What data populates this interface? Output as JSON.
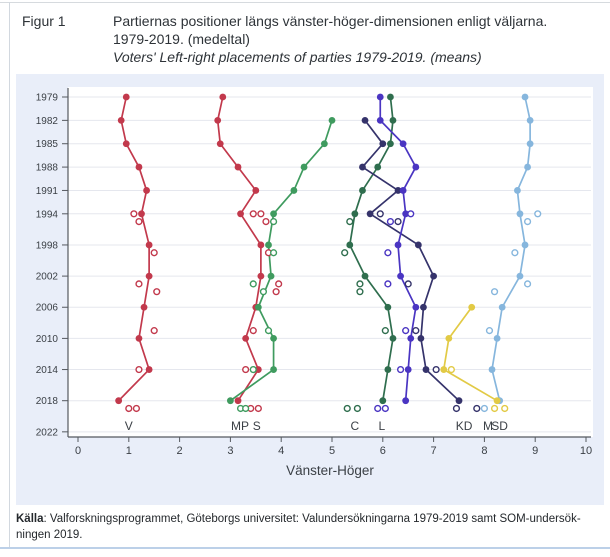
{
  "header": {
    "fig_label": "Figur 1",
    "title_line1": "Partiernas positioner längs vänster-höger-dimensionen enligt väljarna.",
    "title_line2": "1979-2019. (medeltal)",
    "title_line3": "Voters' Left-right placements of parties 1979-2019. (means)"
  },
  "source": {
    "label_bold": "Källa",
    "line1_rest": ": Valforskningsprogrammet, Göteborgs universitet: Valundersökningarna 1979-2019 samt SOM-undersök-",
    "line2": "ningen 2019."
  },
  "colors": {
    "panel_bg": "#e9eef9",
    "plot_bg": "#ffffff",
    "grid": "#e5e7ee",
    "axis": "#55595f",
    "text": "#3a3f45",
    "red": "#c2394c",
    "mp_green": "#3f9b5f",
    "c_green": "#2f6e4e",
    "l_indigo": "#4a35c2",
    "kd_navy": "#35336b",
    "m_lightblue": "#86b6dd",
    "sd_yellow": "#e2ca45"
  },
  "chart_data": {
    "type": "line",
    "title": "Partiernas positioner längs vänster-höger-dimensionen enligt väljarna 1979-2019 (medeltal)",
    "xlabel": "Vänster-Höger",
    "xlim": [
      0,
      10
    ],
    "x_ticks": [
      0,
      1,
      2,
      3,
      4,
      5,
      6,
      7,
      8,
      9,
      10
    ],
    "y_tick_years": [
      1979,
      1982,
      1985,
      1988,
      1991,
      1994,
      1998,
      2002,
      2006,
      2010,
      2014,
      2018,
      2022
    ],
    "grid": true,
    "legend_position": "inline-bottom-labels",
    "marker_note": "filled dot = Valundersökning (election study), open circle = SOM-undersökning",
    "series": [
      {
        "party": "S",
        "color_key": "red",
        "points": [
          [
            1979,
            2.85
          ],
          [
            1982,
            2.75
          ],
          [
            1985,
            2.8
          ],
          [
            1988,
            3.15
          ],
          [
            1991,
            3.5
          ],
          [
            1994,
            3.2
          ],
          [
            1998,
            3.6
          ],
          [
            2002,
            3.6
          ],
          [
            2006,
            3.5
          ],
          [
            2010,
            3.3
          ],
          [
            2014,
            3.55
          ],
          [
            2018,
            3.15
          ]
        ],
        "som": [
          [
            1994,
            3.45
          ],
          [
            1994,
            3.6
          ],
          [
            1995,
            3.7
          ],
          [
            1999,
            3.75
          ],
          [
            2003,
            3.95
          ],
          [
            2004,
            3.9
          ],
          [
            2009,
            3.45
          ],
          [
            2014,
            3.3
          ],
          [
            2019,
            3.4
          ],
          [
            2019,
            3.55
          ]
        ]
      },
      {
        "party": "V",
        "color_key": "red",
        "points": [
          [
            1979,
            0.95
          ],
          [
            1982,
            0.85
          ],
          [
            1985,
            0.95
          ],
          [
            1988,
            1.2
          ],
          [
            1991,
            1.35
          ],
          [
            1994,
            1.25
          ],
          [
            1998,
            1.4
          ],
          [
            2002,
            1.4
          ],
          [
            2006,
            1.3
          ],
          [
            2010,
            1.2
          ],
          [
            2014,
            1.4
          ],
          [
            2018,
            0.8
          ]
        ],
        "som": [
          [
            1994,
            1.1
          ],
          [
            1995,
            1.2
          ],
          [
            1999,
            1.5
          ],
          [
            2003,
            1.2
          ],
          [
            2004,
            1.55
          ],
          [
            2009,
            1.5
          ],
          [
            2014,
            1.2
          ],
          [
            2019,
            1.0
          ],
          [
            2019,
            1.15
          ]
        ]
      },
      {
        "party": "MP",
        "color_key": "mp_green",
        "points": [
          [
            1982,
            5.0
          ],
          [
            1985,
            4.85
          ],
          [
            1988,
            4.45
          ],
          [
            1991,
            4.25
          ],
          [
            1994,
            3.85
          ],
          [
            1998,
            3.75
          ],
          [
            2002,
            3.8
          ],
          [
            2006,
            3.55
          ],
          [
            2010,
            3.85
          ],
          [
            2014,
            3.85
          ],
          [
            2018,
            3.0
          ]
        ],
        "som": [
          [
            1995,
            3.85
          ],
          [
            1999,
            3.85
          ],
          [
            2003,
            3.45
          ],
          [
            2004,
            3.65
          ],
          [
            2009,
            3.75
          ],
          [
            2014,
            3.45
          ],
          [
            2019,
            3.2
          ],
          [
            2019,
            3.3
          ]
        ]
      },
      {
        "party": "C",
        "color_key": "c_green",
        "points": [
          [
            1979,
            6.15
          ],
          [
            1982,
            6.2
          ],
          [
            1985,
            6.15
          ],
          [
            1988,
            5.9
          ],
          [
            1991,
            5.6
          ],
          [
            1994,
            5.45
          ],
          [
            1998,
            5.35
          ],
          [
            2002,
            5.65
          ],
          [
            2006,
            6.1
          ],
          [
            2010,
            6.2
          ],
          [
            2014,
            6.1
          ],
          [
            2018,
            6.0
          ]
        ],
        "som": [
          [
            1995,
            5.35
          ],
          [
            1999,
            5.25
          ],
          [
            2003,
            5.55
          ],
          [
            2004,
            5.55
          ],
          [
            2009,
            6.05
          ],
          [
            2019,
            5.3
          ],
          [
            2019,
            5.5
          ]
        ]
      },
      {
        "party": "KD",
        "color_key": "kd_navy",
        "points": [
          [
            1982,
            5.65
          ],
          [
            1985,
            6.0
          ],
          [
            1988,
            5.6
          ],
          [
            1991,
            6.3
          ],
          [
            1994,
            5.75
          ],
          [
            1998,
            6.7
          ],
          [
            2002,
            7.0
          ],
          [
            2006,
            6.8
          ],
          [
            2010,
            6.75
          ],
          [
            2014,
            6.85
          ],
          [
            2018,
            7.5
          ]
        ],
        "som": [
          [
            1994,
            5.95
          ],
          [
            1995,
            6.3
          ],
          [
            2003,
            6.5
          ],
          [
            2009,
            6.65
          ],
          [
            2014,
            7.05
          ],
          [
            2019,
            7.45
          ],
          [
            2019,
            7.85
          ]
        ]
      },
      {
        "party": "L",
        "color_key": "l_indigo",
        "points": [
          [
            1979,
            5.95
          ],
          [
            1982,
            5.95
          ],
          [
            1985,
            6.4
          ],
          [
            1988,
            6.65
          ],
          [
            1991,
            6.4
          ],
          [
            1994,
            6.45
          ],
          [
            1998,
            6.3
          ],
          [
            2002,
            6.35
          ],
          [
            2006,
            6.65
          ],
          [
            2010,
            6.55
          ],
          [
            2014,
            6.5
          ],
          [
            2018,
            6.45
          ]
        ],
        "som": [
          [
            1994,
            6.55
          ],
          [
            1995,
            6.15
          ],
          [
            1999,
            6.1
          ],
          [
            2003,
            6.1
          ],
          [
            2009,
            6.45
          ],
          [
            2014,
            6.35
          ],
          [
            2019,
            5.9
          ],
          [
            2019,
            6.05
          ]
        ]
      },
      {
        "party": "M",
        "color_key": "m_lightblue",
        "points": [
          [
            1979,
            8.8
          ],
          [
            1982,
            8.9
          ],
          [
            1985,
            8.9
          ],
          [
            1988,
            8.85
          ],
          [
            1991,
            8.65
          ],
          [
            1994,
            8.7
          ],
          [
            1998,
            8.8
          ],
          [
            2002,
            8.7
          ],
          [
            2006,
            8.35
          ],
          [
            2010,
            8.25
          ],
          [
            2014,
            8.15
          ],
          [
            2018,
            8.3
          ]
        ],
        "som": [
          [
            1994,
            9.05
          ],
          [
            1995,
            8.85
          ],
          [
            1999,
            8.6
          ],
          [
            2003,
            8.85
          ],
          [
            2004,
            8.2
          ],
          [
            2009,
            8.1
          ],
          [
            2019,
            8.0
          ]
        ]
      },
      {
        "party": "SD",
        "color_key": "sd_yellow",
        "points": [
          [
            2006,
            7.75
          ],
          [
            2010,
            7.3
          ],
          [
            2014,
            7.2
          ],
          [
            2018,
            8.25
          ]
        ],
        "som": [
          [
            2014,
            7.35
          ],
          [
            2019,
            8.2
          ],
          [
            2019,
            8.4
          ]
        ]
      }
    ],
    "party_labels": [
      {
        "text": "V",
        "x": 1.0
      },
      {
        "text": "MP",
        "x": 3.19
      },
      {
        "text": "S",
        "x": 3.52
      },
      {
        "text": "C",
        "x": 5.45
      },
      {
        "text": "L",
        "x": 5.98
      },
      {
        "text": "KD",
        "x": 7.6
      },
      {
        "text": "M",
        "x": 8.07
      },
      {
        "text": "SD",
        "x": 8.3
      }
    ]
  }
}
